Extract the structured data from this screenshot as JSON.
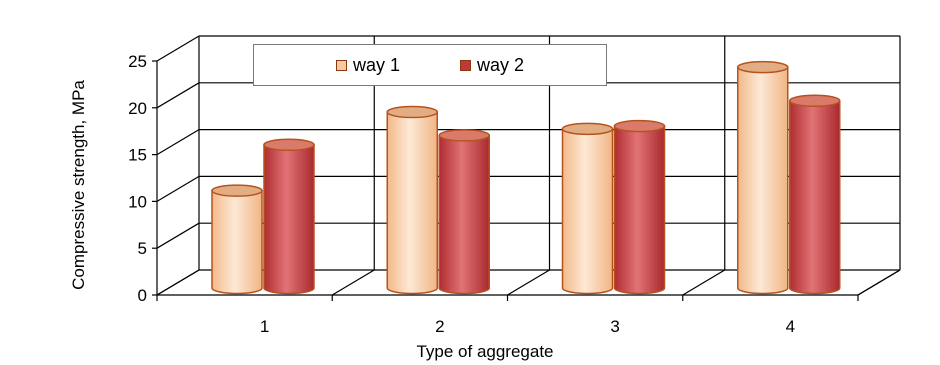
{
  "chart_data": {
    "type": "bar",
    "categories": [
      "1",
      "2",
      "3",
      "4"
    ],
    "series": [
      {
        "name": "way 1",
        "values": [
          10.4,
          18.8,
          17.0,
          23.6
        ]
      },
      {
        "name": "way 2",
        "values": [
          15.3,
          16.3,
          17.3,
          20.0
        ]
      }
    ],
    "title": "",
    "xlabel": "Type of aggregate",
    "ylabel": "Compressive strength, MPa",
    "ylim": [
      0,
      25
    ],
    "yticks": [
      "0",
      "5",
      "10",
      "15",
      "20",
      "25"
    ],
    "grid": true,
    "legend": "top",
    "colors": {
      "way1_fill": "#f7c9a0",
      "way1_light": "#fde6cf",
      "way2_fill": "#c0383c",
      "way2_light": "#e58a8c",
      "outline": "#b5531f"
    }
  }
}
